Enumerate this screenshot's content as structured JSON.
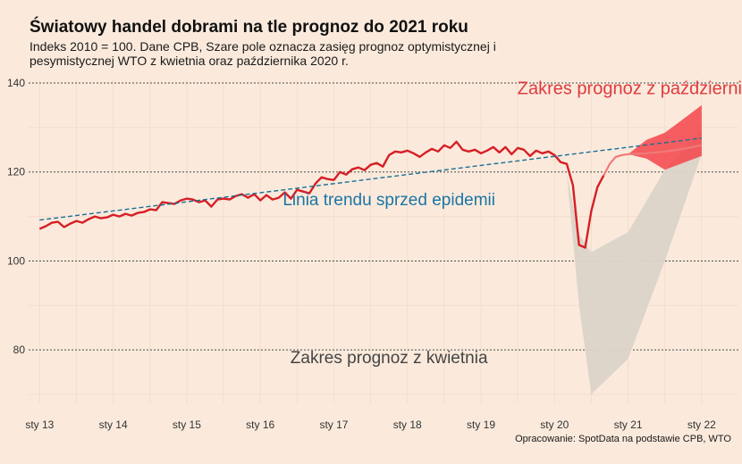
{
  "header": {
    "title": "Światowy handel dobrami na tle prognoz do 2021 roku",
    "subtitle": "Indeks 2010 = 100. Dane CPB, Szare pole oznacza zasięg prognoz optymistycznej i pesymistycznej WTO z kwietnia oraz października 2020 r."
  },
  "caption": "Opracowanie: SpotData na podstawie CPB, WTO",
  "colors": {
    "background": "#fbeadc",
    "actual": "#d61f26",
    "trend": "#1b6f96",
    "band_april": "#dcd4c8",
    "band_october": "#f5444a",
    "october_line": "#f07a7a"
  },
  "chart_data": {
    "type": "line",
    "title": "Światowy handel dobrami na tle prognoz do 2021 roku",
    "xlabel": "",
    "ylabel": "",
    "xlim": [
      2012.85,
      2022.5
    ],
    "ylim": [
      68,
      141
    ],
    "grid": true,
    "y_ticks": [
      80,
      100,
      120,
      140
    ],
    "x_ticks": [
      {
        "value": 2013,
        "label": "sty 13"
      },
      {
        "value": 2014,
        "label": "sty 14"
      },
      {
        "value": 2015,
        "label": "sty 15"
      },
      {
        "value": 2016,
        "label": "sty 16"
      },
      {
        "value": 2017,
        "label": "sty 17"
      },
      {
        "value": 2018,
        "label": "sty 18"
      },
      {
        "value": 2019,
        "label": "sty 19"
      },
      {
        "value": 2020,
        "label": "sty 20"
      },
      {
        "value": 2021,
        "label": "sty 21"
      },
      {
        "value": 2022,
        "label": "sty 22"
      }
    ],
    "annotations": [
      {
        "text": "Zakres prognoz z października",
        "x": 2021.15,
        "y": 137.5,
        "series": "october"
      },
      {
        "text": "Linia trendu sprzed epidemii",
        "x": 2017.75,
        "y": 112.5,
        "series": "trend"
      },
      {
        "text": "Zakres prognoz z kwietnia",
        "x": 2017.75,
        "y": 77.0,
        "series": "april"
      }
    ],
    "series": [
      {
        "name": "",
        "role": "actual",
        "x": [
          2013.0,
          2013.083,
          2013.167,
          2013.25,
          2013.333,
          2013.417,
          2013.5,
          2013.583,
          2013.667,
          2013.75,
          2013.833,
          2013.917,
          2014.0,
          2014.083,
          2014.167,
          2014.25,
          2014.333,
          2014.417,
          2014.5,
          2014.583,
          2014.667,
          2014.75,
          2014.833,
          2014.917,
          2015.0,
          2015.083,
          2015.167,
          2015.25,
          2015.333,
          2015.417,
          2015.5,
          2015.583,
          2015.667,
          2015.75,
          2015.833,
          2015.917,
          2016.0,
          2016.083,
          2016.167,
          2016.25,
          2016.333,
          2016.417,
          2016.5,
          2016.583,
          2016.667,
          2016.75,
          2016.833,
          2016.917,
          2017.0,
          2017.083,
          2017.167,
          2017.25,
          2017.333,
          2017.417,
          2017.5,
          2017.583,
          2017.667,
          2017.75,
          2017.833,
          2017.917,
          2018.0,
          2018.083,
          2018.167,
          2018.25,
          2018.333,
          2018.417,
          2018.5,
          2018.583,
          2018.667,
          2018.75,
          2018.833,
          2018.917,
          2019.0,
          2019.083,
          2019.167,
          2019.25,
          2019.333,
          2019.417,
          2019.5,
          2019.583,
          2019.667,
          2019.75,
          2019.833,
          2019.917,
          2020.0,
          2020.083,
          2020.167,
          2020.25,
          2020.333,
          2020.417,
          2020.5,
          2020.583,
          2020.667
        ],
        "values": [
          107.2,
          107.8,
          108.6,
          108.8,
          107.6,
          108.4,
          109.0,
          108.6,
          109.4,
          110.0,
          109.6,
          109.8,
          110.4,
          110.0,
          110.6,
          110.2,
          110.8,
          111.0,
          111.6,
          111.4,
          113.2,
          113.0,
          112.8,
          113.6,
          114.0,
          113.8,
          113.2,
          113.6,
          112.2,
          113.8,
          114.0,
          113.8,
          114.6,
          115.0,
          114.2,
          115.0,
          113.6,
          114.8,
          113.8,
          114.2,
          115.4,
          114.0,
          116.0,
          115.6,
          115.2,
          117.4,
          118.8,
          118.4,
          118.2,
          120.0,
          119.4,
          120.6,
          121.0,
          120.4,
          121.6,
          122.0,
          121.2,
          123.8,
          124.6,
          124.4,
          124.8,
          124.2,
          123.4,
          124.4,
          125.2,
          124.6,
          126.0,
          125.4,
          126.8,
          125.0,
          124.6,
          125.0,
          124.2,
          124.8,
          125.6,
          124.4,
          125.6,
          124.0,
          125.4,
          125.0,
          123.6,
          124.8,
          124.2,
          124.6,
          123.8,
          122.2,
          121.8,
          117.0,
          103.6,
          103.0,
          111.2,
          116.6,
          119.2
        ]
      },
      {
        "name": "",
        "role": "october_projection",
        "x": [
          2020.667,
          2020.75,
          2020.833,
          2020.917,
          2021.0,
          2021.25,
          2021.5,
          2021.75,
          2022.0
        ],
        "values": [
          119.2,
          121.8,
          123.4,
          123.8,
          124.0,
          124.2,
          124.6,
          125.2,
          126.0
        ]
      },
      {
        "name": "",
        "role": "trend",
        "x": [
          2013.0,
          2022.0
        ],
        "values": [
          109.2,
          127.6
        ]
      },
      {
        "name": "",
        "role": "october_range",
        "x": [
          2021.0,
          2021.25,
          2021.5,
          2022.0
        ],
        "upper": [
          124.0,
          127.2,
          128.8,
          135.0
        ],
        "lower": [
          124.0,
          123.0,
          120.5,
          123.6
        ]
      },
      {
        "name": "",
        "role": "april_range",
        "x": [
          2020.167,
          2020.333,
          2020.5,
          2021.0,
          2021.5,
          2022.0
        ],
        "upper": [
          119.5,
          106.0,
          102.0,
          106.5,
          120.5,
          129.5
        ],
        "lower": [
          119.5,
          90.0,
          70.0,
          78.0,
          100.0,
          124.0
        ]
      }
    ]
  }
}
